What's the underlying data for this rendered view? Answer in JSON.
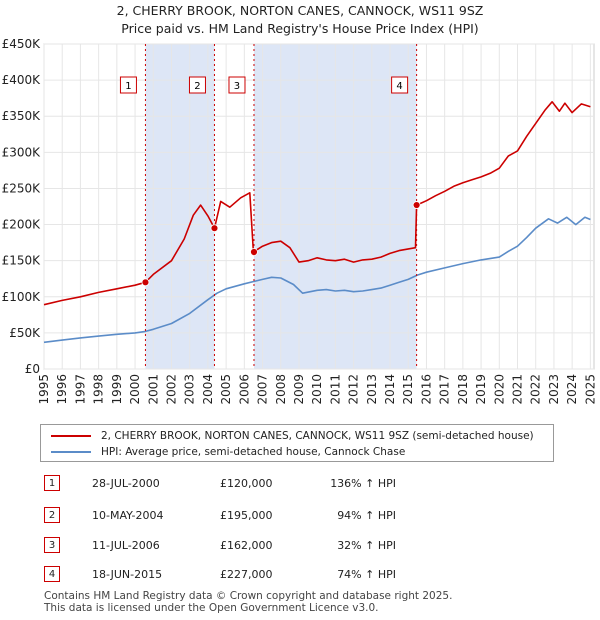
{
  "chart_data": {
    "type": "line",
    "title": "2, CHERRY BROOK, NORTON CANES, CANNOCK, WS11 9SZ",
    "subtitle": "Price paid vs. HM Land Registry's House Price Index (HPI)",
    "xlim": [
      1995,
      2025.2
    ],
    "ylim": [
      0,
      450000
    ],
    "x_ticks": [
      "1995",
      "1996",
      "1997",
      "1998",
      "1999",
      "2000",
      "2001",
      "2002",
      "2003",
      "2004",
      "2005",
      "2006",
      "2007",
      "2008",
      "2009",
      "2010",
      "2011",
      "2012",
      "2013",
      "2014",
      "2015",
      "2016",
      "2017",
      "2018",
      "2019",
      "2020",
      "2021",
      "2022",
      "2023",
      "2024",
      "2025"
    ],
    "y_ticks": [
      {
        "value": 0,
        "label": "£0"
      },
      {
        "value": 50000,
        "label": "£50K"
      },
      {
        "value": 100000,
        "label": "£100K"
      },
      {
        "value": 150000,
        "label": "£150K"
      },
      {
        "value": 200000,
        "label": "£200K"
      },
      {
        "value": 250000,
        "label": "£250K"
      },
      {
        "value": 300000,
        "label": "£300K"
      },
      {
        "value": 350000,
        "label": "£350K"
      },
      {
        "value": 400000,
        "label": "£400K"
      },
      {
        "value": 450000,
        "label": "£450K"
      }
    ],
    "series": [
      {
        "name": "2, CHERRY BROOK, NORTON CANES, CANNOCK, WS11 9SZ (semi-detached house)",
        "color": "#cc0000",
        "points": [
          [
            1995,
            89000
          ],
          [
            1996,
            95000
          ],
          [
            1997,
            100000
          ],
          [
            1998,
            106000
          ],
          [
            1999,
            111000
          ],
          [
            2000,
            116000
          ],
          [
            2000.57,
            120000
          ],
          [
            2001,
            131000
          ],
          [
            2002,
            150000
          ],
          [
            2002.7,
            180000
          ],
          [
            2003.2,
            213000
          ],
          [
            2003.6,
            227000
          ],
          [
            2004.0,
            212000
          ],
          [
            2004.36,
            195000
          ],
          [
            2004.7,
            232000
          ],
          [
            2005.2,
            224000
          ],
          [
            2005.8,
            237000
          ],
          [
            2006.3,
            244000
          ],
          [
            2006.5,
            162000
          ],
          [
            2007,
            170000
          ],
          [
            2007.5,
            175000
          ],
          [
            2008,
            177000
          ],
          [
            2008.5,
            168000
          ],
          [
            2009,
            148000
          ],
          [
            2009.5,
            150000
          ],
          [
            2010,
            154000
          ],
          [
            2010.5,
            151000
          ],
          [
            2011,
            150000
          ],
          [
            2011.5,
            152000
          ],
          [
            2012,
            148000
          ],
          [
            2012.5,
            151000
          ],
          [
            2013,
            152000
          ],
          [
            2013.5,
            155000
          ],
          [
            2014,
            160000
          ],
          [
            2014.5,
            164000
          ],
          [
            2015.4,
            168000
          ],
          [
            2015.46,
            227000
          ],
          [
            2016,
            233000
          ],
          [
            2016.5,
            240000
          ],
          [
            2017,
            246000
          ],
          [
            2017.5,
            253000
          ],
          [
            2018,
            258000
          ],
          [
            2018.5,
            262000
          ],
          [
            2019,
            266000
          ],
          [
            2019.5,
            271000
          ],
          [
            2020,
            278000
          ],
          [
            2020.5,
            295000
          ],
          [
            2021,
            302000
          ],
          [
            2021.5,
            322000
          ],
          [
            2022,
            340000
          ],
          [
            2022.5,
            358000
          ],
          [
            2022.9,
            370000
          ],
          [
            2023.3,
            357000
          ],
          [
            2023.6,
            368000
          ],
          [
            2024,
            355000
          ],
          [
            2024.5,
            367000
          ],
          [
            2025,
            363000
          ]
        ]
      },
      {
        "name": "HPI: Average price, semi-detached house, Cannock Chase",
        "color": "#5b8cc8",
        "points": [
          [
            1995,
            37000
          ],
          [
            1996,
            40000
          ],
          [
            1997,
            43000
          ],
          [
            1998,
            45500
          ],
          [
            1999,
            48000
          ],
          [
            2000,
            50000
          ],
          [
            2000.57,
            52000
          ],
          [
            2001,
            55000
          ],
          [
            2002,
            63000
          ],
          [
            2003,
            77000
          ],
          [
            2004,
            96000
          ],
          [
            2004.5,
            105000
          ],
          [
            2005,
            111000
          ],
          [
            2006,
            118000
          ],
          [
            2007,
            124000
          ],
          [
            2007.5,
            127000
          ],
          [
            2008,
            126000
          ],
          [
            2008.7,
            117000
          ],
          [
            2009.2,
            105000
          ],
          [
            2010,
            109000
          ],
          [
            2010.5,
            110000
          ],
          [
            2011,
            108000
          ],
          [
            2011.5,
            109000
          ],
          [
            2012,
            107000
          ],
          [
            2012.5,
            108000
          ],
          [
            2013,
            110000
          ],
          [
            2013.5,
            112000
          ],
          [
            2014,
            116000
          ],
          [
            2014.5,
            120000
          ],
          [
            2015,
            124000
          ],
          [
            2015.5,
            130000
          ],
          [
            2016,
            134000
          ],
          [
            2017,
            140000
          ],
          [
            2018,
            146000
          ],
          [
            2019,
            151000
          ],
          [
            2020,
            155000
          ],
          [
            2020.5,
            163000
          ],
          [
            2021,
            170000
          ],
          [
            2021.5,
            182000
          ],
          [
            2022,
            195000
          ],
          [
            2022.7,
            208000
          ],
          [
            2023.2,
            202000
          ],
          [
            2023.7,
            210000
          ],
          [
            2024.2,
            200000
          ],
          [
            2024.7,
            210000
          ],
          [
            2025,
            207000
          ]
        ]
      }
    ],
    "sales": [
      {
        "id": "1",
        "x": 2000.57,
        "price": 120000
      },
      {
        "id": "2",
        "x": 2004.36,
        "price": 195000
      },
      {
        "id": "3",
        "x": 2006.53,
        "price": 162000
      },
      {
        "id": "4",
        "x": 2015.46,
        "price": 227000
      }
    ],
    "shaded_ranges": [
      [
        2000.57,
        2004.36
      ],
      [
        2006.53,
        2015.46
      ]
    ],
    "shade_color": "#dde6f6"
  },
  "legend": {
    "property_label": "2, CHERRY BROOK, NORTON CANES, CANNOCK, WS11 9SZ (semi-detached house)",
    "hpi_label": "HPI: Average price, semi-detached house, Cannock Chase"
  },
  "sales_table": [
    {
      "id": "1",
      "date": "28-JUL-2000",
      "price": "£120,000",
      "hpi": "136% ↑ HPI"
    },
    {
      "id": "2",
      "date": "10-MAY-2004",
      "price": "£195,000",
      "hpi": "94% ↑ HPI"
    },
    {
      "id": "3",
      "date": "11-JUL-2006",
      "price": "£162,000",
      "hpi": "32% ↑ HPI"
    },
    {
      "id": "4",
      "date": "18-JUN-2015",
      "price": "£227,000",
      "hpi": "74% ↑ HPI"
    }
  ],
  "footer": {
    "line1": "Contains HM Land Registry data © Crown copyright and database right 2025.",
    "line2": "This data is licensed under the Open Government Licence v3.0."
  }
}
